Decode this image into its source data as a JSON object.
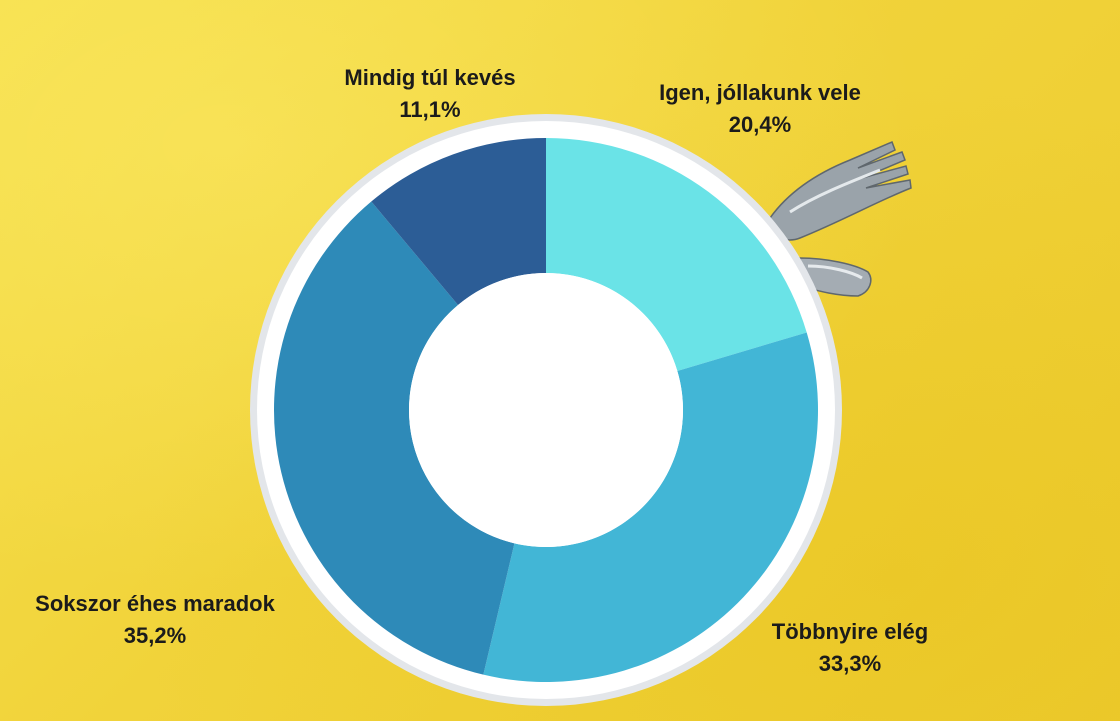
{
  "colors": {
    "background": "#f2d83a",
    "plate_rim": "#e3e6ea",
    "plate": "#ffffff"
  },
  "chart_data": {
    "type": "pie",
    "variant": "donut",
    "title": "",
    "start_angle_deg": 0,
    "direction": "clockwise",
    "slices": [
      {
        "label": "Igen, jóllakunk vele",
        "value": 20.4,
        "value_label": "20,4%",
        "color": "#6ae3e7"
      },
      {
        "label": "Többnyire elég",
        "value": 33.3,
        "value_label": "33,3%",
        "color": "#42b6d6"
      },
      {
        "label": "Sokszor éhes maradok",
        "value": 35.2,
        "value_label": "35,2%",
        "color": "#2e8ab8"
      },
      {
        "label": "Mindig túl kevés",
        "value": 11.1,
        "value_label": "11,1%",
        "color": "#2c5d96"
      }
    ]
  },
  "decorations": [
    "fork-icon",
    "knife-icon"
  ]
}
